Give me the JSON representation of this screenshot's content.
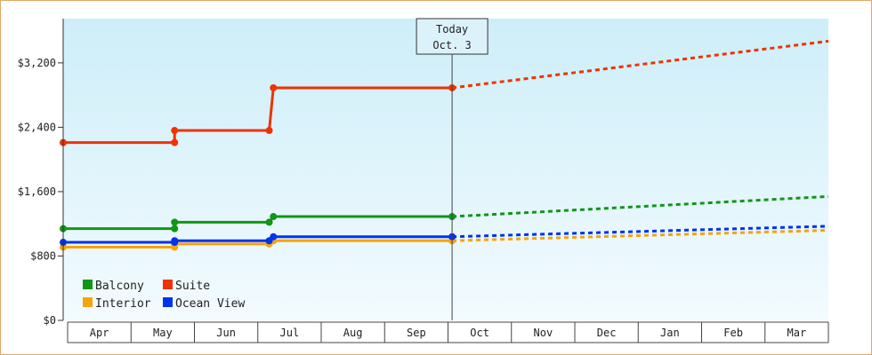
{
  "chart_data": {
    "type": "line",
    "title": "",
    "xlabel": "",
    "ylabel": "",
    "x_axis_labels": [
      "Apr",
      "May",
      "Jun",
      "Jul",
      "Aug",
      "Sep",
      "Oct",
      "Nov",
      "Dec",
      "Jan",
      "Feb",
      "Mar"
    ],
    "y_ticks": [
      0,
      800,
      1600,
      2400,
      3200
    ],
    "y_tick_labels": [
      "$0",
      "$800",
      "$1,600",
      "$2,400",
      "$3,200"
    ],
    "ylim": [
      0,
      3750
    ],
    "x_range": [
      "2013-04-01",
      "2014-03-31"
    ],
    "today": {
      "date": "2013-10-03",
      "label_line1": "Today",
      "label_line2": "Oct. 3"
    },
    "legend": {
      "placement": "bottom-left"
    },
    "series": [
      {
        "name": "Balcony",
        "color": "#109618",
        "points": [
          [
            "2013-04-01",
            1140
          ],
          [
            "2013-05-24",
            1140
          ],
          [
            "2013-05-24",
            1220
          ],
          [
            "2013-07-08",
            1220
          ],
          [
            "2013-07-10",
            1290
          ],
          [
            "2013-10-03",
            1290
          ]
        ],
        "forecast": [
          [
            "2013-10-03",
            1290
          ],
          [
            "2014-03-31",
            1540
          ]
        ]
      },
      {
        "name": "Suite",
        "color": "#ee3300",
        "points": [
          [
            "2013-04-01",
            2210
          ],
          [
            "2013-05-24",
            2210
          ],
          [
            "2013-05-24",
            2360
          ],
          [
            "2013-07-08",
            2360
          ],
          [
            "2013-07-10",
            2890
          ],
          [
            "2013-10-03",
            2890
          ]
        ],
        "forecast": [
          [
            "2013-10-03",
            2890
          ],
          [
            "2014-03-31",
            3470
          ]
        ]
      },
      {
        "name": "Interior",
        "color": "#f7a30c",
        "points": [
          [
            "2013-04-01",
            910
          ],
          [
            "2013-05-24",
            910
          ],
          [
            "2013-05-24",
            950
          ],
          [
            "2013-07-08",
            950
          ],
          [
            "2013-07-10",
            990
          ],
          [
            "2013-10-03",
            990
          ]
        ],
        "forecast": [
          [
            "2013-10-03",
            990
          ],
          [
            "2014-03-31",
            1120
          ]
        ]
      },
      {
        "name": "Ocean View",
        "color": "#0033ee",
        "points": [
          [
            "2013-04-01",
            970
          ],
          [
            "2013-05-24",
            970
          ],
          [
            "2013-05-24",
            990
          ],
          [
            "2013-07-08",
            990
          ],
          [
            "2013-07-10",
            1040
          ],
          [
            "2013-10-03",
            1040
          ]
        ],
        "forecast": [
          [
            "2013-10-03",
            1040
          ],
          [
            "2014-03-31",
            1170
          ]
        ]
      }
    ]
  }
}
